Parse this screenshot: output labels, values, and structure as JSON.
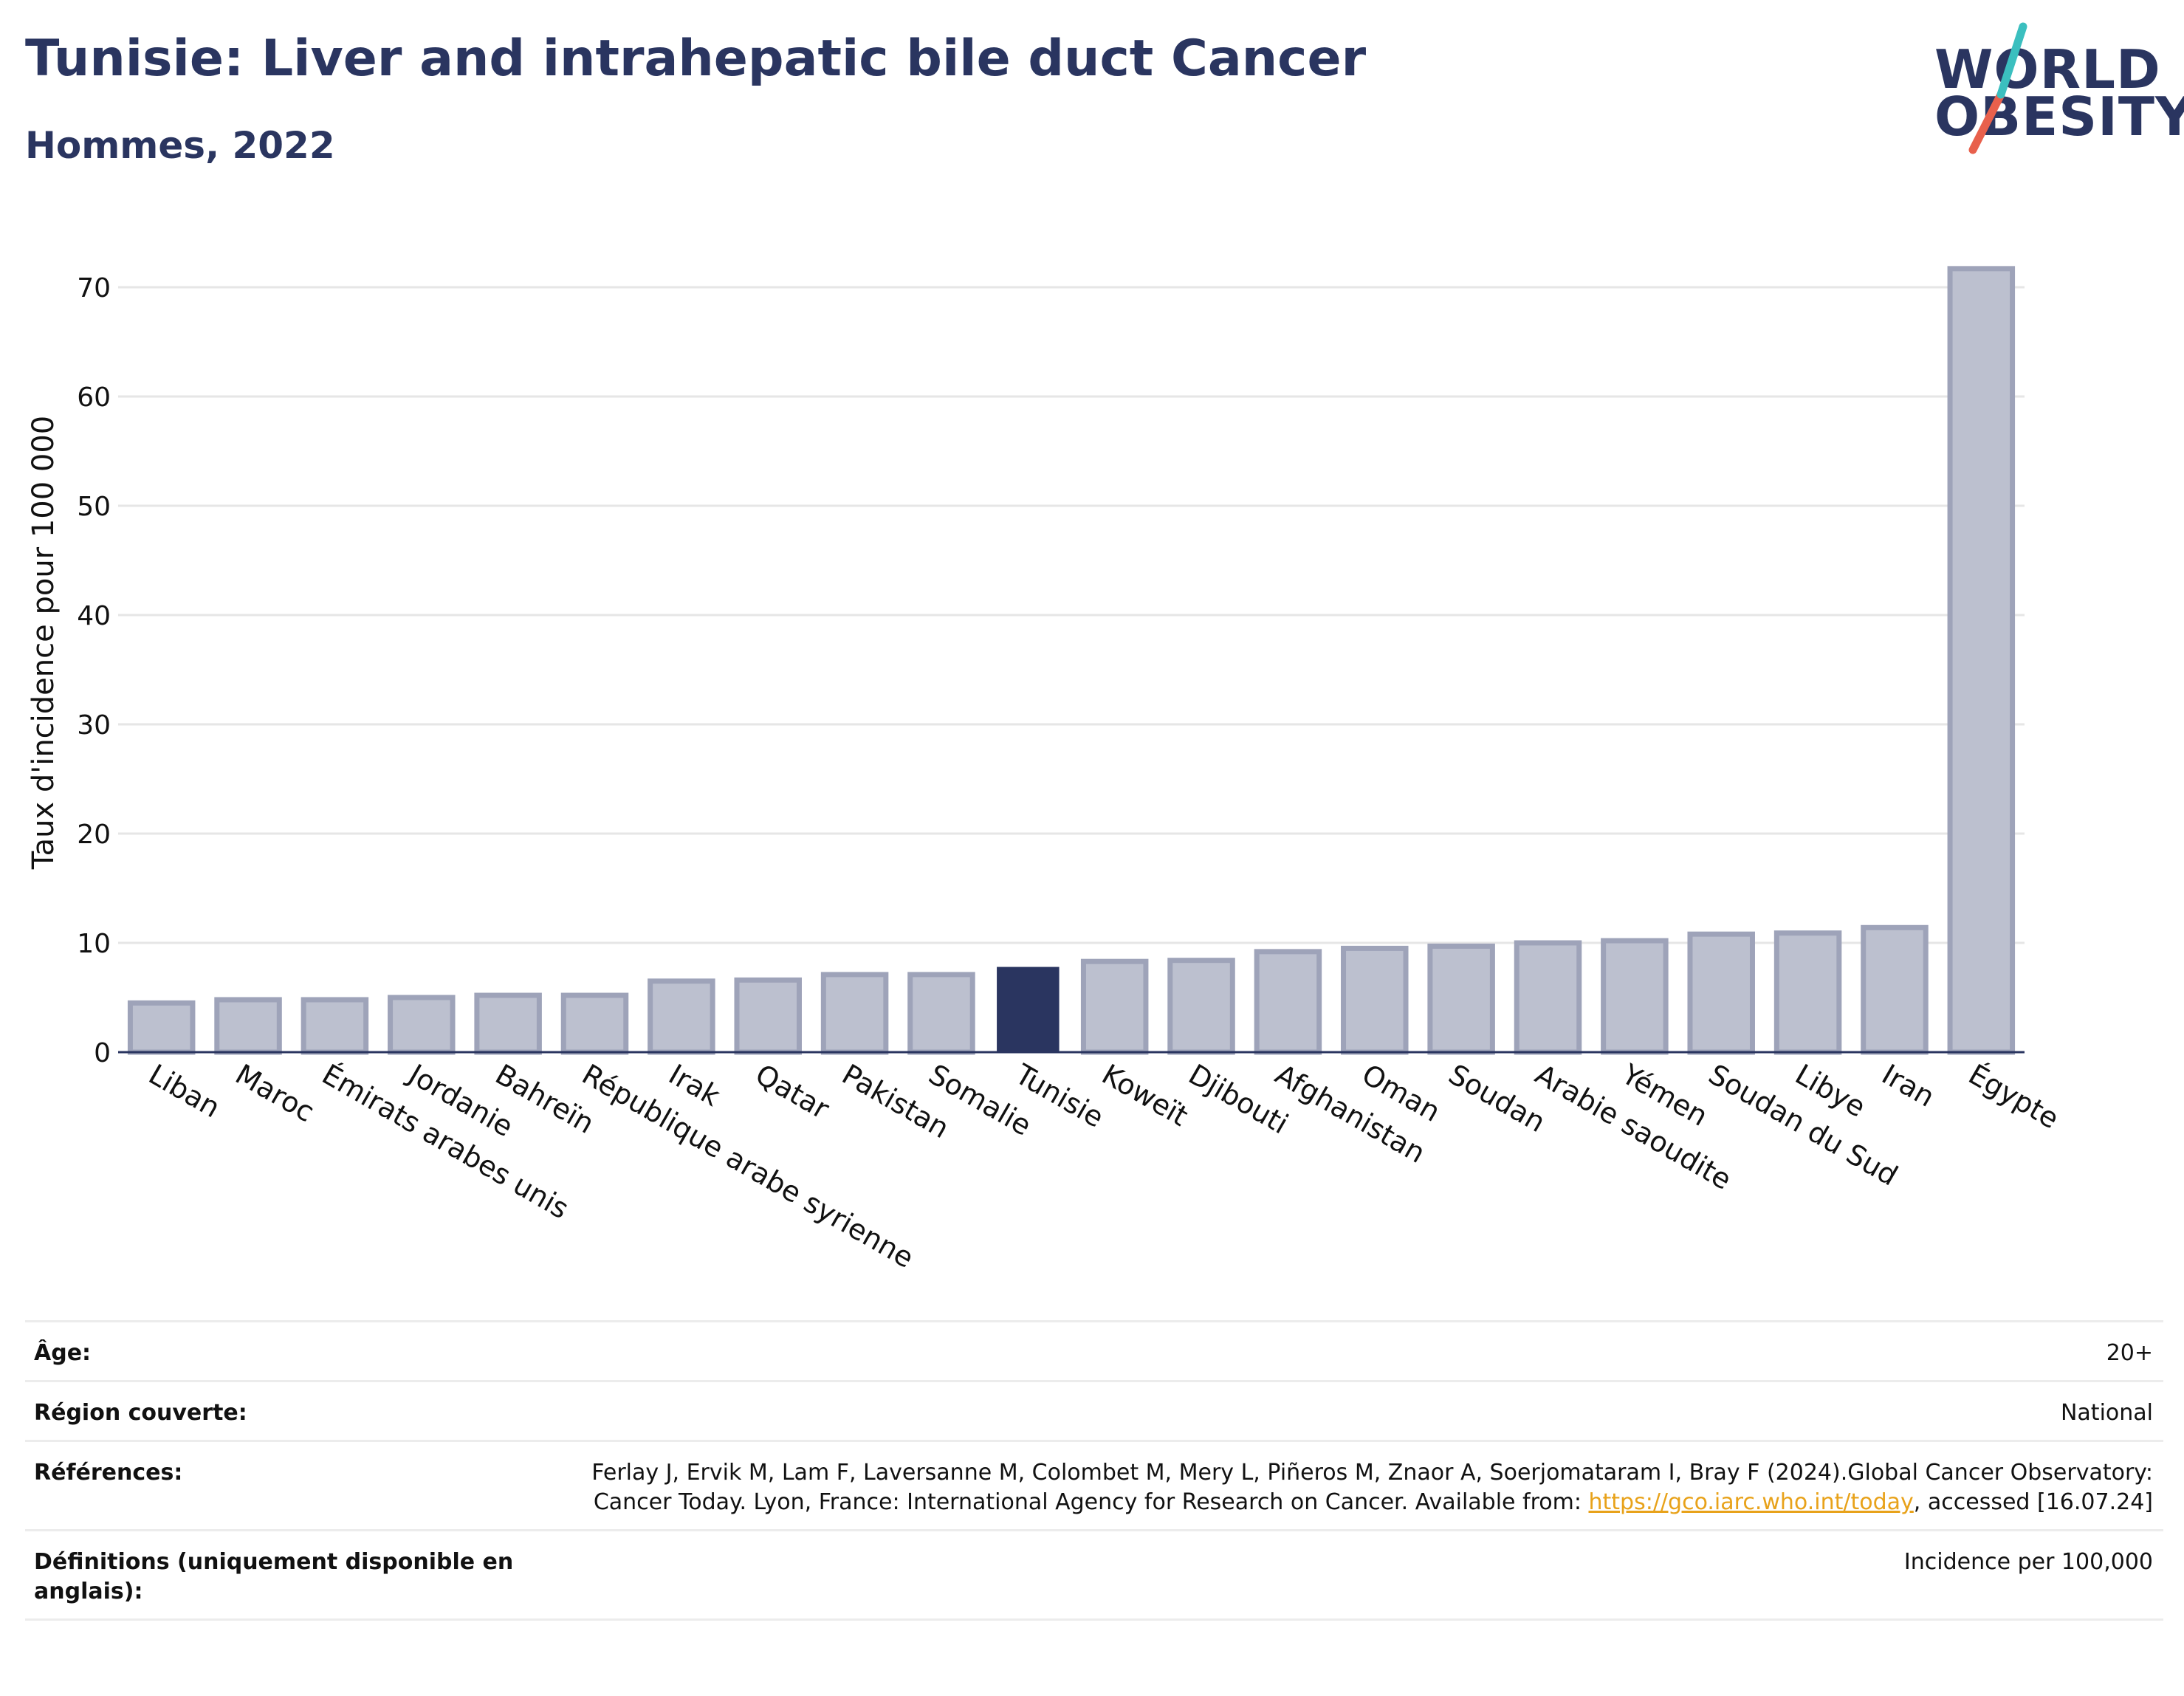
{
  "header": {
    "title": "Tunisie: Liver and intrahepatic bile duct Cancer",
    "subtitle": "Hommes, 2022"
  },
  "logo": {
    "line1": "WORLD",
    "line2": "OBESITY",
    "colors": [
      "#2a3560",
      "#3bbfbf",
      "#e8604c"
    ]
  },
  "chart_data": {
    "type": "bar",
    "ylabel": "Taux d'incidence pour 100 000",
    "xlabel": "",
    "ylim": [
      0,
      75
    ],
    "yticks": [
      0,
      10,
      20,
      30,
      40,
      50,
      60,
      70
    ],
    "grid": true,
    "highlight": "Tunisie",
    "colors": {
      "bar": "#bcc0cf",
      "bar_border": "#9ea3b9",
      "highlight": "#2a3560",
      "grid": "#e6e6e6",
      "axis": "#2a3560"
    },
    "categories": [
      "Liban",
      "Maroc",
      "Émirats arabes unis",
      "Jordanie",
      "Bahreïn",
      "République arabe syrienne",
      "Irak",
      "Qatar",
      "Pakistan",
      "Somalie",
      "Tunisie",
      "Koweït",
      "Djibouti",
      "Afghanistan",
      "Oman",
      "Soudan",
      "Arabie saoudite",
      "Yémen",
      "Soudan du Sud",
      "Libye",
      "Iran",
      "Égypte"
    ],
    "values": [
      4.5,
      4.8,
      4.8,
      5.0,
      5.2,
      5.2,
      6.5,
      6.6,
      7.1,
      7.1,
      7.8,
      8.3,
      8.4,
      9.2,
      9.5,
      9.7,
      10.0,
      10.2,
      10.8,
      10.9,
      11.4,
      71.7
    ]
  },
  "meta": {
    "rows": [
      {
        "label": "Âge:",
        "value": "20+"
      },
      {
        "label": "Région couverte:",
        "value": "National"
      },
      {
        "label": "Références:",
        "value_pre": "Ferlay J, Ervik M, Lam F, Laversanne M, Colombet M, Mery L, Piñeros M, Znaor A, Soerjomataram I, Bray F (2024).Global Cancer Observatory: Cancer Today. Lyon, France: International Agency for Research on Cancer. Available from: ",
        "link": "https://gco.iarc.who.int/today",
        "value_post": ", accessed [16.07.24]"
      },
      {
        "label": "Définitions (uniquement disponible en anglais):",
        "value": "Incidence per 100,000"
      }
    ]
  }
}
